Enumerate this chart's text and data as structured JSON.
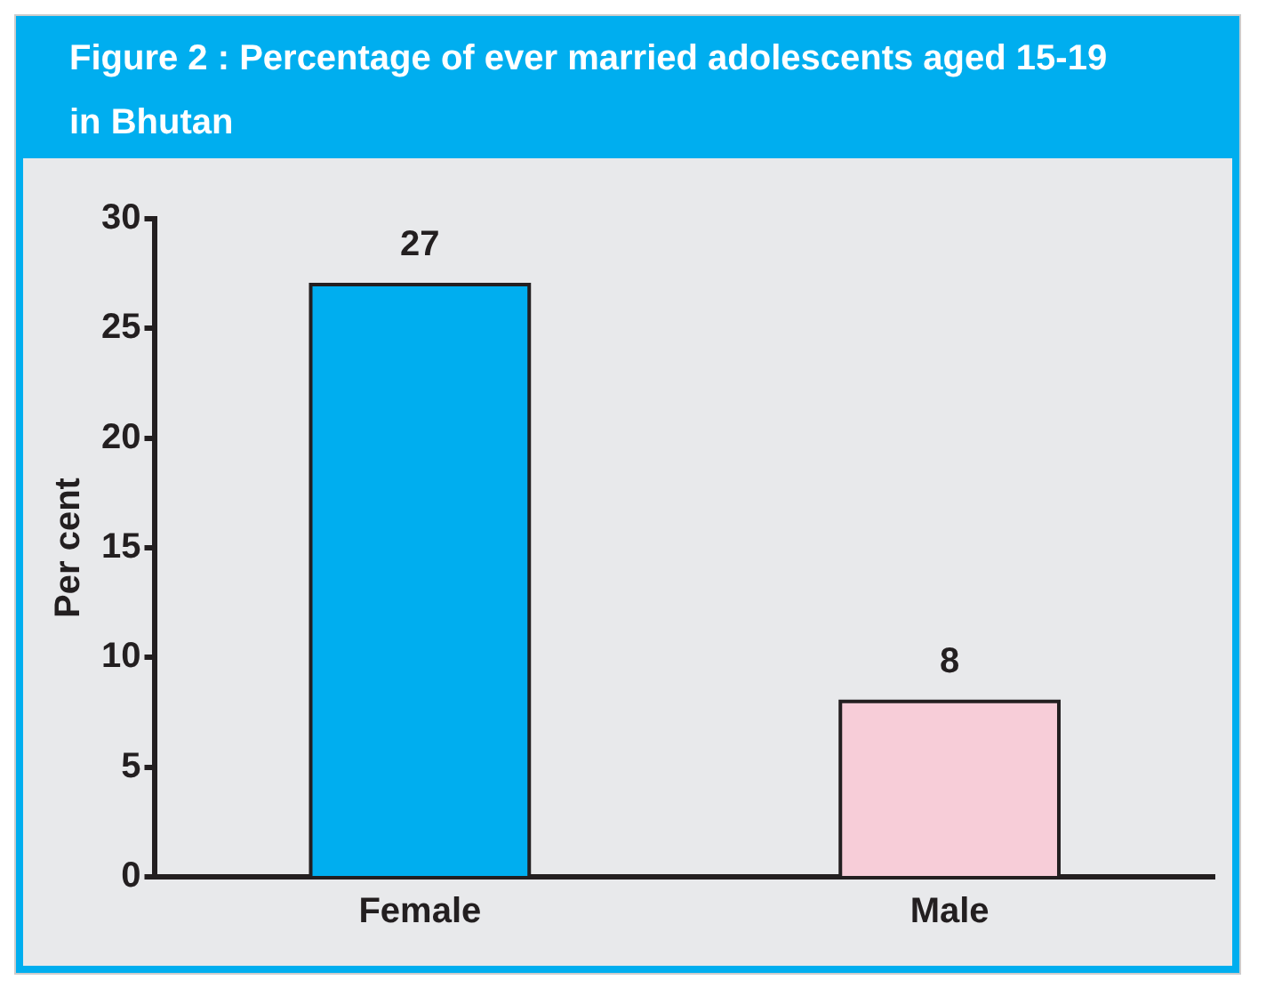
{
  "chart_data": {
    "type": "bar",
    "title": "Figure 2 : Percentage of ever married adolescents aged 15-19 in Bhutan",
    "ylabel": "Per cent",
    "categories": [
      "Female",
      "Male"
    ],
    "values": [
      27,
      8
    ],
    "colors": [
      "#00aeef",
      "#f7cdd8"
    ],
    "ylim": [
      0,
      30
    ],
    "yticks": [
      0,
      5,
      10,
      15,
      20,
      25,
      30
    ],
    "grid": false,
    "legend": false,
    "data_labels": true
  }
}
